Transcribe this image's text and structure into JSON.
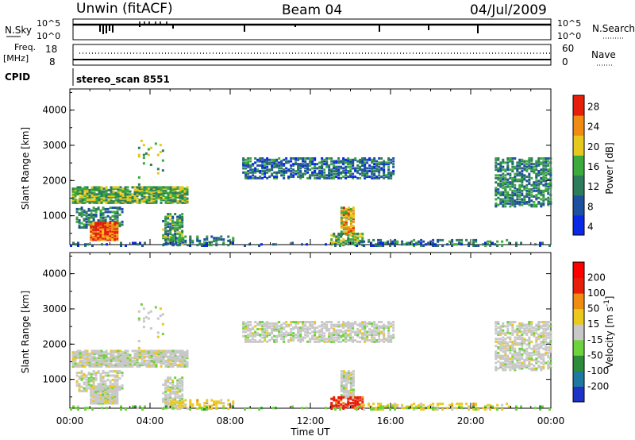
{
  "header": {
    "site": "Unwin (fitACF)",
    "beam": "Beam 04",
    "date": "04/Jul/2009"
  },
  "top_panels": {
    "nsky_label": "N.Sky",
    "nsky_ticks": [
      "10^5",
      "10^0"
    ],
    "nsearch_label": "N.Search",
    "nsearch_ticks": [
      "10^5",
      "10^0"
    ],
    "freq_label": "Freq.",
    "freq_unit": "[MHz]",
    "freq_ticks": [
      "18",
      "8"
    ],
    "nave_label": "Nave",
    "nave_ticks": [
      "60",
      "0"
    ],
    "cpid_label": "CPID",
    "cpid_value": "stereo_scan 8551"
  },
  "chart_data": [
    {
      "type": "heatmap",
      "name": "power",
      "ylabel": "Slant Range [km]",
      "ylim": [
        180,
        4600
      ],
      "yticks": [
        "1000",
        "2000",
        "3000",
        "4000"
      ],
      "colorbar": {
        "label": "Power [dB]",
        "ticks": [
          "4",
          "8",
          "12",
          "16",
          "20",
          "24",
          "28"
        ],
        "colors": [
          "#0a28e6",
          "#1e50a0",
          "#2d7d5a",
          "#3caa3c",
          "#e6c81e",
          "#f08c14",
          "#e61e0a"
        ]
      }
    },
    {
      "type": "heatmap",
      "name": "velocity",
      "ylabel": "Slant Range [km]",
      "ylim": [
        180,
        4600
      ],
      "yticks": [
        "1000",
        "2000",
        "3000",
        "4000"
      ],
      "colorbar": {
        "label": "Velocity [m s",
        "label_sup": "-1",
        "label_close": "]",
        "ticks": [
          "200",
          "100",
          "50",
          "15",
          "-15",
          "-50",
          "-100",
          "-200"
        ],
        "colors": [
          "#1e32c8",
          "#1e78a0",
          "#2d8c3c",
          "#6ed23c",
          "#c8c8c8",
          "#ebc81e",
          "#f08c14",
          "#e61e0a",
          "#ff0000"
        ]
      }
    }
  ],
  "x_axis": {
    "xlabel": "Time UT",
    "ticks": [
      "00:00",
      "04:00",
      "08:00",
      "12:00",
      "16:00",
      "20:00",
      "00:00"
    ]
  },
  "colors": {
    "axis": "#000000",
    "gray": "#c8c8c8"
  }
}
